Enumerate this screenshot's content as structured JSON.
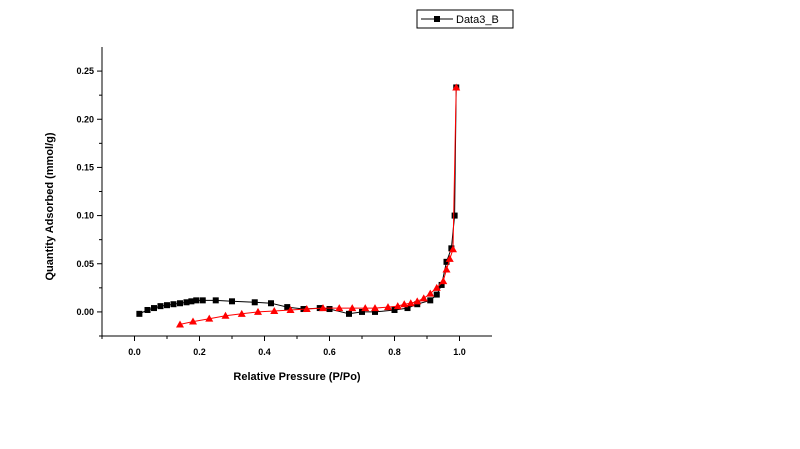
{
  "chart_data": {
    "type": "scatter",
    "title": "",
    "xlabel": "Relative Pressure (P/Po)",
    "ylabel": "Quantity Adsorbed (mmol/g)",
    "xlim": [
      -0.1,
      1.1
    ],
    "ylim": [
      -0.025,
      0.275
    ],
    "x_ticks": [
      0.0,
      0.2,
      0.4,
      0.6,
      0.8,
      1.0
    ],
    "x_tick_labels": [
      "0.0",
      "0.2",
      "0.4",
      "0.6",
      "0.8",
      "1.0"
    ],
    "y_ticks": [
      0.0,
      0.05,
      0.1,
      0.15,
      0.2,
      0.25
    ],
    "y_tick_labels": [
      "0.00",
      "0.05",
      "0.10",
      "0.15",
      "0.20",
      "0.25"
    ],
    "grid": false,
    "legend": {
      "position": "top-right",
      "entries": [
        "Data3_B"
      ]
    },
    "series": [
      {
        "name": "Data3_B",
        "marker": "square",
        "color": "#000000",
        "x": [
          0.015,
          0.04,
          0.06,
          0.08,
          0.1,
          0.12,
          0.14,
          0.16,
          0.175,
          0.19,
          0.21,
          0.25,
          0.3,
          0.37,
          0.42,
          0.47,
          0.52,
          0.57,
          0.6,
          0.66,
          0.7,
          0.74,
          0.8,
          0.84,
          0.87,
          0.91,
          0.93,
          0.945,
          0.96,
          0.975,
          0.985,
          0.99
        ],
        "y": [
          -0.002,
          0.002,
          0.004,
          0.006,
          0.007,
          0.008,
          0.009,
          0.01,
          0.011,
          0.012,
          0.012,
          0.012,
          0.011,
          0.01,
          0.009,
          0.005,
          0.003,
          0.004,
          0.003,
          -0.002,
          0.0,
          0.0,
          0.002,
          0.004,
          0.008,
          0.012,
          0.018,
          0.028,
          0.052,
          0.066,
          0.1,
          0.233
        ]
      },
      {
        "name": "",
        "marker": "triangle",
        "color": "#ff0000",
        "x": [
          0.14,
          0.18,
          0.23,
          0.28,
          0.33,
          0.38,
          0.43,
          0.48,
          0.53,
          0.58,
          0.63,
          0.67,
          0.71,
          0.74,
          0.78,
          0.81,
          0.83,
          0.85,
          0.87,
          0.89,
          0.91,
          0.93,
          0.95,
          0.96,
          0.97,
          0.98,
          0.99
        ],
        "y": [
          -0.013,
          -0.01,
          -0.007,
          -0.004,
          -0.002,
          0.0,
          0.001,
          0.002,
          0.003,
          0.004,
          0.004,
          0.004,
          0.004,
          0.004,
          0.005,
          0.006,
          0.008,
          0.009,
          0.011,
          0.014,
          0.019,
          0.025,
          0.032,
          0.044,
          0.055,
          0.065,
          0.233
        ]
      }
    ]
  }
}
